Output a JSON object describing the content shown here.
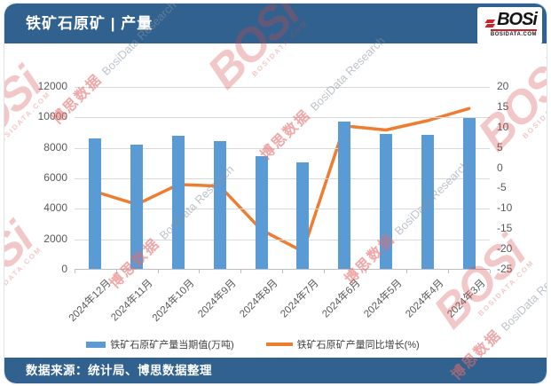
{
  "header": {
    "title": "铁矿石原矿 | 产量"
  },
  "logo": {
    "text": "BOSi",
    "subtext": "BOSIDATA.COM"
  },
  "watermark": {
    "cn": "博思数据",
    "en": "BosiData Research",
    "logo": "BOSi",
    "logo_sub": "BOSIDATA.COM"
  },
  "footer": {
    "source": "数据来源：统计局、博思数据整理"
  },
  "colors": {
    "header_bg": "#31618F",
    "bar": "#5B9BD5",
    "line": "#ED7D31",
    "grid": "#D9D9D9",
    "axis_text": "#595959",
    "logo_red": "#C9252C"
  },
  "chart_data": {
    "type": "bar",
    "subtype": "bar+line combo, dual axis",
    "title": "铁矿石原矿 | 产量",
    "categories": [
      "2024年12月",
      "2024年11月",
      "2024年10月",
      "2024年9月",
      "2024年8月",
      "2024年7月",
      "2024年6月",
      "2024年5月",
      "2024年4月",
      "2024年3月"
    ],
    "series": [
      {
        "name": "铁矿石原矿产量当期值(万吨)",
        "type": "bar",
        "axis": "left",
        "color": "#5B9BD5",
        "values": [
          8550,
          8180,
          8730,
          8380,
          7400,
          7010,
          9650,
          8860,
          8790,
          9900
        ]
      },
      {
        "name": "铁矿石原矿产量同比增长(%)",
        "type": "line",
        "axis": "right",
        "color": "#ED7D31",
        "values": [
          -5.8,
          -8.9,
          -4.0,
          -4.4,
          -15.2,
          -20.5,
          10.4,
          9.4,
          11.7,
          14.7
        ]
      }
    ],
    "left_axis": {
      "range": [
        0,
        12000
      ],
      "ticks": [
        0,
        2000,
        4000,
        6000,
        8000,
        10000,
        12000
      ]
    },
    "right_axis": {
      "range": [
        -25,
        20
      ],
      "ticks": [
        20,
        15,
        10,
        5,
        0,
        -5,
        -10,
        -15,
        -20,
        -25
      ]
    },
    "grid": true,
    "legend_position": "bottom",
    "source_note": "数据来源：统计局、博思数据整理"
  }
}
